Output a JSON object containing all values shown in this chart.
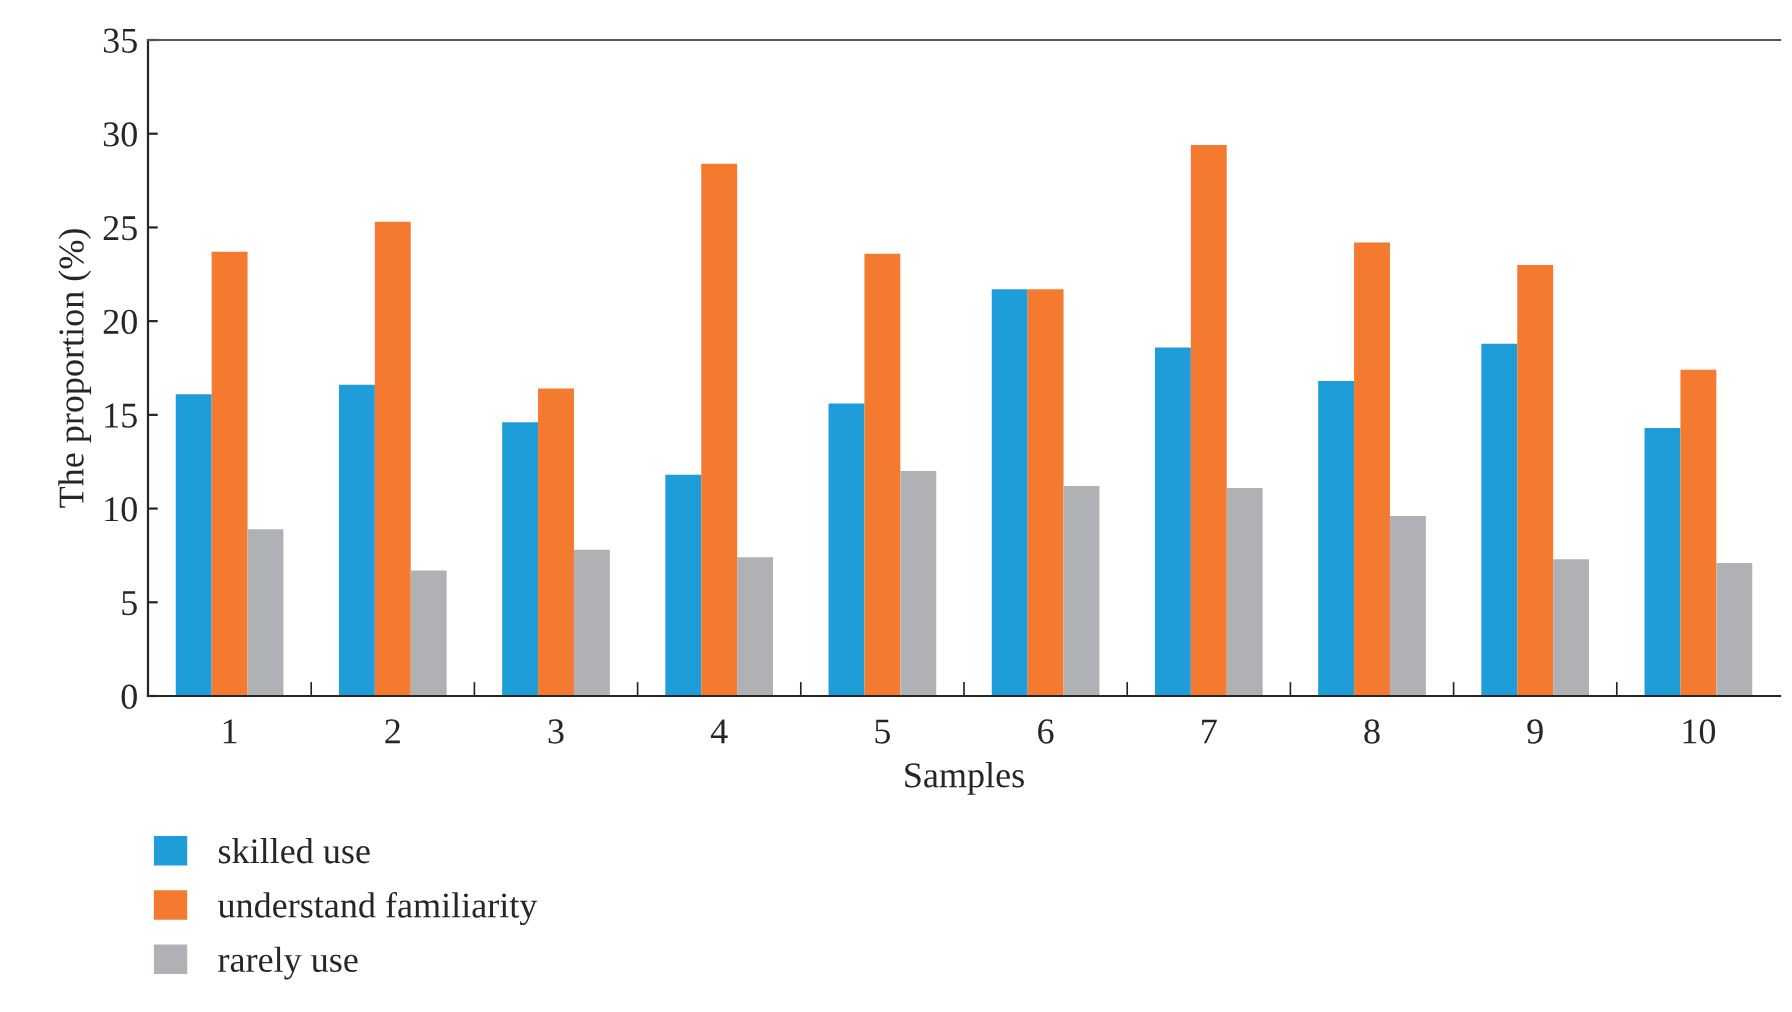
{
  "chart_data": {
    "type": "bar",
    "xlabel": "Samples",
    "ylabel": "The proportion (%)",
    "categories": [
      "1",
      "2",
      "3",
      "4",
      "5",
      "6",
      "7",
      "8",
      "9",
      "10"
    ],
    "series": [
      {
        "name": "skilled use",
        "color": "#1e9dd8",
        "values": [
          16.1,
          16.6,
          14.6,
          11.8,
          15.6,
          21.7,
          18.6,
          16.8,
          18.8,
          14.3
        ]
      },
      {
        "name": "understand familiarity",
        "color": "#f47a30",
        "values": [
          23.7,
          25.3,
          16.4,
          28.4,
          23.6,
          21.7,
          29.4,
          24.2,
          23.0,
          17.4
        ]
      },
      {
        "name": "rarely use",
        "color": "#b0b1b4",
        "values": [
          8.9,
          6.7,
          7.8,
          7.4,
          12.0,
          11.2,
          11.1,
          9.6,
          7.3,
          7.1
        ]
      }
    ],
    "ylim": [
      0,
      35
    ],
    "yticks": [
      0,
      5,
      10,
      15,
      20,
      25,
      30,
      35
    ],
    "grid": false,
    "legend": "bottom left"
  }
}
